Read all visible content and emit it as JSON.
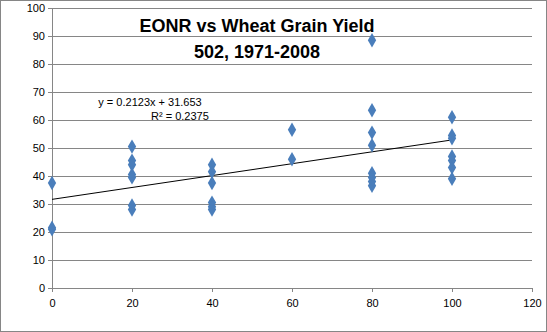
{
  "chart_data": {
    "type": "scatter",
    "title": "EONR vs Wheat Grain Yield",
    "subtitle": "502, 1971-2008",
    "x": [
      0,
      0,
      0,
      20,
      20,
      20,
      20,
      20,
      20,
      20,
      40,
      40,
      40,
      40,
      40,
      40,
      60,
      60,
      80,
      80,
      80,
      80,
      80,
      80,
      80,
      80,
      100,
      100,
      100,
      100,
      100,
      100,
      100
    ],
    "values": [
      37.5,
      21.5,
      21,
      50.5,
      45.5,
      44,
      40.5,
      39.5,
      29.5,
      28,
      44,
      41.5,
      37.5,
      30.5,
      29,
      28,
      56.5,
      46,
      88.5,
      63.5,
      55.5,
      51,
      41,
      39.5,
      38,
      36.5,
      61,
      54.5,
      53.5,
      47,
      45.5,
      43,
      39
    ],
    "color": "#4a7ebb",
    "marker": "diamond",
    "trendline": {
      "slope": 0.2123,
      "intercept": 31.653,
      "color": "#000000"
    },
    "annotations": [
      "y = 0.2123x + 31.653",
      "R² = 0.2375"
    ],
    "xlim": [
      0,
      120
    ],
    "xticks": [
      0,
      20,
      40,
      60,
      80,
      100,
      120
    ],
    "ylim": [
      0,
      100
    ],
    "yticks": [
      0,
      10,
      20,
      30,
      40,
      50,
      60,
      70,
      80,
      90,
      100
    ],
    "grid": true
  }
}
